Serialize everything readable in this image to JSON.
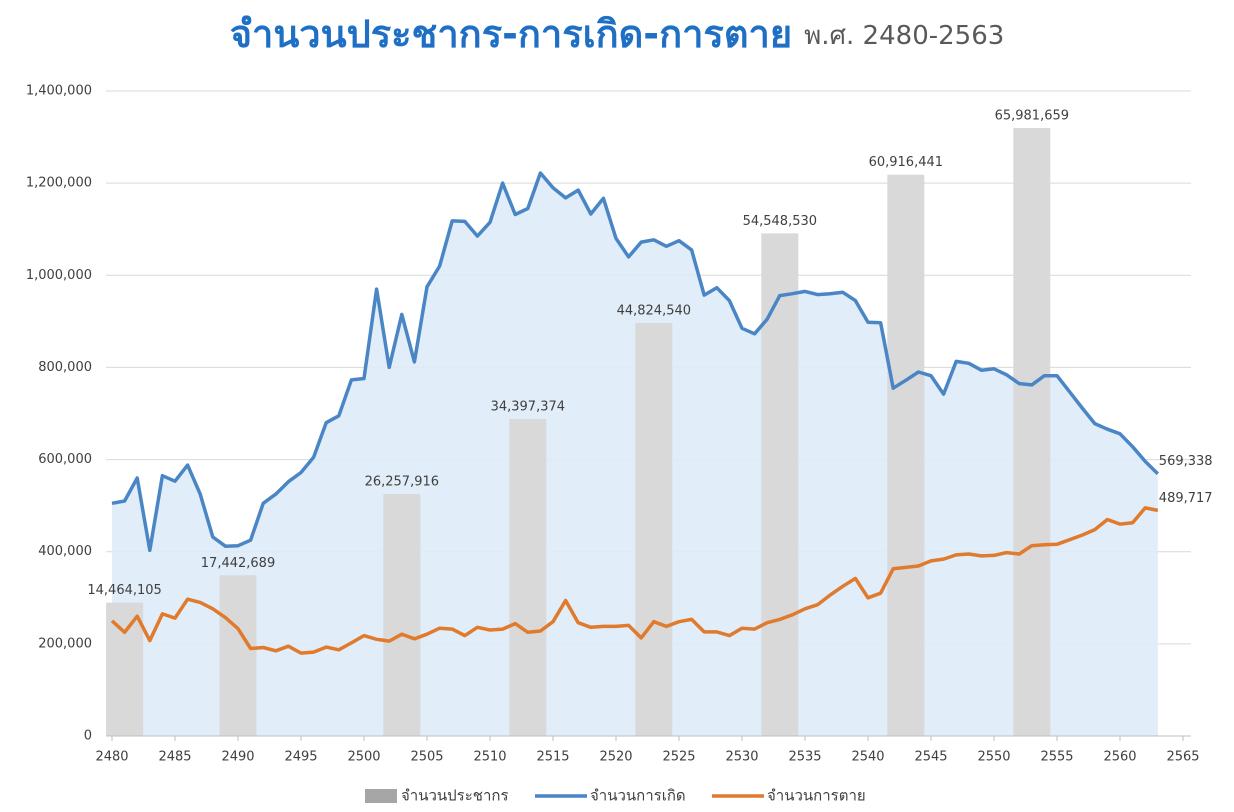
{
  "chart_data": {
    "type": "combo",
    "title": "จำนวนประชากร-การเกิด-การตาย",
    "subtitle": "พ.ศ. 2480-2563",
    "x": [
      2480,
      2481,
      2482,
      2483,
      2484,
      2485,
      2486,
      2487,
      2488,
      2489,
      2490,
      2491,
      2492,
      2493,
      2494,
      2495,
      2496,
      2497,
      2498,
      2499,
      2500,
      2501,
      2502,
      2503,
      2504,
      2505,
      2506,
      2507,
      2508,
      2509,
      2510,
      2511,
      2512,
      2513,
      2514,
      2515,
      2516,
      2517,
      2518,
      2519,
      2520,
      2521,
      2522,
      2523,
      2524,
      2525,
      2526,
      2527,
      2528,
      2529,
      2530,
      2531,
      2532,
      2533,
      2534,
      2535,
      2536,
      2537,
      2538,
      2539,
      2540,
      2541,
      2542,
      2543,
      2544,
      2545,
      2546,
      2547,
      2548,
      2549,
      2550,
      2551,
      2552,
      2553,
      2554,
      2555,
      2556,
      2557,
      2558,
      2559,
      2560,
      2561,
      2562,
      2563
    ],
    "xlim": [
      2480,
      2565
    ],
    "xticks": [
      2480,
      2485,
      2490,
      2495,
      2500,
      2505,
      2510,
      2515,
      2520,
      2525,
      2530,
      2535,
      2540,
      2545,
      2550,
      2555,
      2560,
      2565
    ],
    "ylim": [
      0,
      1400000
    ],
    "yticks": [
      0,
      {
        "value": 200000,
        "label": "200,000"
      },
      {
        "value": 400000,
        "label": "400,000"
      },
      {
        "value": 600000,
        "label": "600,000"
      },
      {
        "value": 800000,
        "label": "800,000"
      },
      {
        "value": 1000000,
        "label": "1,000,000"
      },
      {
        "value": 1200000,
        "label": "1,200,000"
      },
      {
        "value": 1400000,
        "label": "1,400,000"
      }
    ],
    "y2lim": [
      0,
      70000000
    ],
    "grid": true,
    "legend": "bottom",
    "series": [
      {
        "name": "จำนวนประชากร",
        "type": "bar",
        "axis": "y2",
        "color": "#d9d9d9",
        "x": [
          2481,
          2490,
          2503,
          2513,
          2523,
          2533,
          2543,
          2553
        ],
        "values": [
          14464105,
          17442689,
          26257916,
          34397374,
          44824540,
          54548530,
          60916441,
          65981659
        ],
        "value_labels": [
          "14,464,105",
          "17,442,689",
          "26,257,916",
          "34,397,374",
          "44,824,540",
          "54,548,530",
          "60,916,441",
          "65,981,659"
        ]
      },
      {
        "name": "จำนวนการเกิด",
        "type": "line",
        "color": "#4a86c5",
        "fill": "#deebf7",
        "values": [
          505000,
          510000,
          560000,
          403000,
          565000,
          553000,
          588000,
          525000,
          432000,
          412000,
          413000,
          425000,
          505000,
          525000,
          552000,
          572000,
          605000,
          680000,
          695000,
          773000,
          776000,
          970000,
          800000,
          915000,
          812000,
          975000,
          1020000,
          1118000,
          1117000,
          1085000,
          1115000,
          1200000,
          1132000,
          1145000,
          1222000,
          1190000,
          1168000,
          1185000,
          1133000,
          1167000,
          1080000,
          1040000,
          1072000,
          1077000,
          1063000,
          1075000,
          1055000,
          957000,
          973000,
          945000,
          885000,
          873000,
          905000,
          956000,
          960000,
          965000,
          958000,
          960000,
          963000,
          945000,
          898000,
          897000,
          755000,
          772000,
          790000,
          782000,
          742000,
          813000,
          809000,
          794000,
          797000,
          784000,
          765000,
          762000,
          782000,
          782000,
          747000,
          712000,
          678000,
          666000,
          656000,
          628000,
          596000,
          569338
        ],
        "value_labels": [
          null,
          null,
          null,
          null,
          null,
          null,
          null,
          null,
          null,
          null,
          null,
          null,
          null,
          null,
          null,
          null,
          null,
          null,
          null,
          null,
          null,
          null,
          null,
          null,
          null,
          null,
          null,
          null,
          null,
          null,
          null,
          null,
          null,
          null,
          null,
          null,
          null,
          null,
          null,
          null,
          null,
          null,
          null,
          null,
          null,
          null,
          null,
          null,
          null,
          null,
          null,
          null,
          null,
          null,
          null,
          null,
          null,
          null,
          null,
          null,
          null,
          null,
          null,
          null,
          null,
          null,
          null,
          null,
          null,
          null,
          null,
          null,
          null,
          null,
          null,
          null,
          null,
          null,
          null,
          null,
          null,
          null,
          null,
          "569,338"
        ]
      },
      {
        "name": "จำนวนการตาย",
        "type": "line",
        "color": "#e07a2d",
        "values": [
          250000,
          225000,
          260000,
          207000,
          265000,
          256000,
          297000,
          290000,
          276000,
          257000,
          233000,
          190000,
          192000,
          185000,
          195000,
          180000,
          182000,
          193000,
          187000,
          202000,
          218000,
          210000,
          206000,
          221000,
          211000,
          221000,
          234000,
          232000,
          218000,
          236000,
          230000,
          232000,
          244000,
          225000,
          228000,
          248000,
          294000,
          246000,
          236000,
          238000,
          238000,
          240000,
          213000,
          248000,
          238000,
          248000,
          253000,
          226000,
          226000,
          218000,
          234000,
          232000,
          246000,
          253000,
          263000,
          276000,
          285000,
          306000,
          325000,
          342000,
          300000,
          310000,
          363000,
          366000,
          369000,
          380000,
          384000,
          393000,
          395000,
          391000,
          392000,
          398000,
          395000,
          413000,
          415000,
          416000,
          426000,
          436000,
          448000,
          470000,
          460000,
          463000,
          495000,
          489717
        ],
        "value_labels": [
          null,
          null,
          null,
          null,
          null,
          null,
          null,
          null,
          null,
          null,
          null,
          null,
          null,
          null,
          null,
          null,
          null,
          null,
          null,
          null,
          null,
          null,
          null,
          null,
          null,
          null,
          null,
          null,
          null,
          null,
          null,
          null,
          null,
          null,
          null,
          null,
          null,
          null,
          null,
          null,
          null,
          null,
          null,
          null,
          null,
          null,
          null,
          null,
          null,
          null,
          null,
          null,
          null,
          null,
          null,
          null,
          null,
          null,
          null,
          null,
          null,
          null,
          null,
          null,
          null,
          null,
          null,
          null,
          null,
          null,
          null,
          null,
          null,
          null,
          null,
          null,
          null,
          null,
          null,
          null,
          null,
          null,
          null,
          "489,717"
        ]
      }
    ]
  }
}
